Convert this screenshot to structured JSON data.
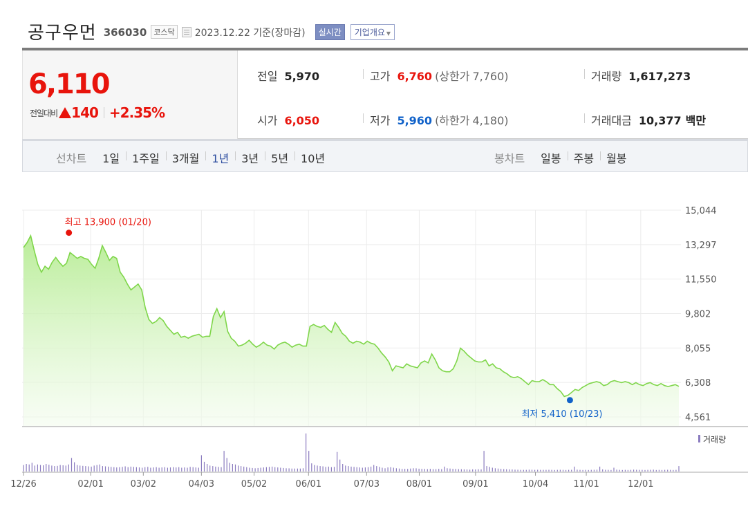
{
  "header": {
    "name": "공구우먼",
    "code": "366030",
    "market": "코스닥",
    "date": "2023.12.22  기준(장마감)",
    "realtime": "실시간",
    "overview": "기업개요"
  },
  "price": {
    "current": "6,110",
    "change_label": "전일대비",
    "change_value": "140",
    "change_pct": "+2.35%",
    "prev_close_label": "전일",
    "prev_close": "5,970",
    "high_label": "고가",
    "high": "6,760",
    "upper_limit_label": "(상한가",
    "upper_limit": "7,760)",
    "volume_label": "거래량",
    "volume": "1,617,273",
    "open_label": "시가",
    "open": "6,050",
    "low_label": "저가",
    "low": "5,960",
    "lower_limit_label": "(하한가",
    "lower_limit": "4,180)",
    "amount_label": "거래대금",
    "amount": "10,377",
    "amount_unit": "백만"
  },
  "toolbar": {
    "line_title": "선차트",
    "line_items": [
      "1일",
      "1주일",
      "3개월",
      "1년",
      "3년",
      "5년",
      "10년"
    ],
    "active": "1년",
    "candle_title": "봉차트",
    "candle_items": [
      "일봉",
      "주봉",
      "월봉"
    ]
  },
  "colors": {
    "up": "#e8140c",
    "down": "#1162c9",
    "line": "#7fd64a",
    "volume": "#8a7bbf"
  },
  "chart_data": {
    "type": "area",
    "series": [
      {
        "name": "",
        "x_start": "2022-12-26",
        "x_end": "2023-12-22",
        "values": [
          13150,
          13400,
          13750,
          13000,
          12300,
          11900,
          12200,
          12050,
          12400,
          12650,
          12400,
          12200,
          12350,
          12900,
          12750,
          12600,
          12700,
          12600,
          12550,
          12300,
          12100,
          12600,
          13250,
          12900,
          12500,
          12700,
          12600,
          11900,
          11650,
          11300,
          11000,
          11150,
          11300,
          11000,
          10100,
          9500,
          9300,
          9400,
          9600,
          9450,
          9150,
          8950,
          8750,
          8850,
          8600,
          8650,
          8550,
          8650,
          8700,
          8750,
          8600,
          8650,
          8650,
          9650,
          10050,
          9600,
          9900,
          8900,
          8550,
          8400,
          8150,
          8200,
          8300,
          8450,
          8250,
          8100,
          8200,
          8350,
          8200,
          8150,
          8000,
          8200,
          8300,
          8350,
          8250,
          8100,
          8200,
          8250,
          8150,
          8150,
          9150,
          9250,
          9150,
          9100,
          9200,
          9000,
          8850,
          9350,
          9100,
          8800,
          8650,
          8400,
          8300,
          8400,
          8350,
          8250,
          8400,
          8300,
          8250,
          8050,
          7800,
          7600,
          7350,
          6900,
          7150,
          7100,
          7050,
          7250,
          7150,
          7100,
          7050,
          7300,
          7400,
          7300,
          7750,
          7450,
          7050,
          6900,
          6850,
          6850,
          7000,
          7400,
          8050,
          7900,
          7700,
          7550,
          7400,
          7350,
          7350,
          7450,
          7150,
          7250,
          7050,
          7000,
          6850,
          6750,
          6600,
          6550,
          6600,
          6500,
          6350,
          6200,
          6400,
          6350,
          6350,
          6450,
          6350,
          6200,
          6200,
          6000,
          5850,
          5600,
          5650,
          5800,
          5950,
          5900,
          6050,
          6150,
          6250,
          6300,
          6350,
          6300,
          6150,
          6200,
          6350,
          6400,
          6350,
          6300,
          6350,
          6300,
          6200,
          6300,
          6200,
          6150,
          6250,
          6300,
          6200,
          6150,
          6250,
          6150,
          6100,
          6150,
          6200,
          6110
        ]
      }
    ],
    "volume_values": [
      120,
      140,
      130,
      160,
      110,
      130,
      120,
      115,
      140,
      125,
      110,
      100,
      105,
      120,
      115,
      110,
      130,
      250,
      170,
      120,
      110,
      105,
      100,
      95,
      90,
      110,
      120,
      130,
      100,
      95,
      90,
      85,
      80,
      75,
      80,
      85,
      95,
      80,
      90,
      85,
      80,
      75,
      70,
      80,
      85,
      70,
      75,
      80,
      70,
      75,
      80,
      70,
      75,
      80,
      75,
      80,
      70,
      75,
      70,
      85,
      80,
      75,
      70,
      300,
      180,
      140,
      110,
      100,
      90,
      85,
      80,
      380,
      250,
      160,
      140,
      130,
      110,
      100,
      90,
      80,
      70,
      65,
      60,
      65,
      70,
      75,
      80,
      85,
      90,
      80,
      75,
      70,
      65,
      60,
      58,
      55,
      55,
      55,
      55,
      60,
      700,
      380,
      150,
      120,
      110,
      100,
      95,
      85,
      90,
      80,
      85,
      360,
      220,
      140,
      110,
      100,
      90,
      85,
      80,
      75,
      70,
      75,
      80,
      90,
      120,
      100,
      85,
      70,
      60,
      75,
      80,
      70,
      60,
      55,
      50,
      50,
      48,
      55,
      60,
      58,
      52,
      50,
      48,
      45,
      50,
      45,
      45,
      50,
      45,
      90,
      60,
      55,
      50,
      48,
      45,
      42,
      40,
      38,
      35,
      40,
      38,
      42,
      40,
      380,
      100,
      85,
      70,
      60,
      55,
      50,
      45,
      42,
      40,
      38,
      35,
      33,
      30,
      30,
      30,
      35,
      33,
      30,
      32,
      30,
      30,
      30,
      32,
      30,
      28,
      30,
      32,
      30,
      28,
      30,
      32,
      90,
      35,
      30,
      28,
      30,
      28,
      30,
      32,
      35,
      90,
      40,
      32,
      30,
      28,
      70,
      35,
      30,
      28,
      30,
      28,
      30,
      35,
      32,
      30,
      30,
      28,
      30,
      32,
      35,
      28,
      30,
      28,
      30,
      32,
      30,
      28,
      30,
      100
    ],
    "yticks": [
      "15,044",
      "13,297",
      "11,550",
      "9,802",
      "8,055",
      "6,308",
      "4,561"
    ],
    "ylim": [
      4561,
      15044
    ],
    "xticks": [
      "12/26",
      "02/01",
      "03/02",
      "04/03",
      "05/02",
      "06/01",
      "07/03",
      "08/01",
      "09/01",
      "10/04",
      "11/01",
      "12/01"
    ],
    "max_label": "최고 13,900 (01/20)",
    "min_label": "최저 5,410 (10/23)",
    "max_value": 13900,
    "min_value": 5410,
    "max_date": "01/20",
    "min_date": "10/23",
    "volume_legend": "거래량",
    "grid": true
  }
}
